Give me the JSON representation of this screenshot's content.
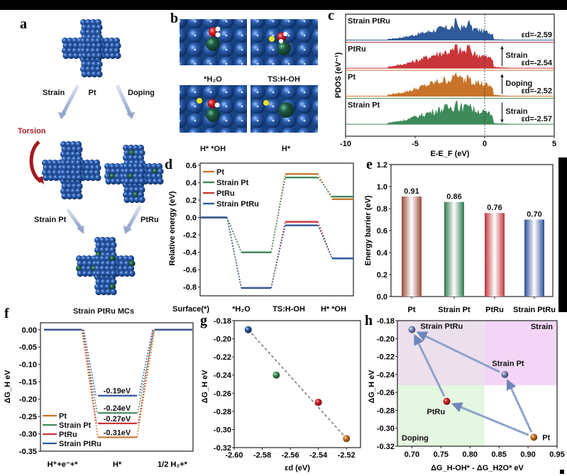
{
  "colors": {
    "pt": "#c8742a",
    "strain_pt": "#3e8a5a",
    "ptru": "#c9363a",
    "strain_ptru": "#2e5a9a",
    "atom_blue": "#1f4f96",
    "atom_green": "#1f5a44",
    "arrow": "#9aaccc",
    "torsion": "#b01e24",
    "strain_region": "#f2d9f5",
    "doping_region": "#e6f8e3"
  },
  "panel_a": {
    "label": "a",
    "top_name": "Pt",
    "left_arrow_label": "Strain",
    "right_arrow_label": "Doping",
    "torsion_label": "Torsion",
    "left_name": "Strain Pt",
    "right_name": "PtRu",
    "bottom_name": "Strain PtRu MCs"
  },
  "panel_b": {
    "label": "b",
    "images": [
      {
        "caption": "*H₂O"
      },
      {
        "caption": "TS:H-OH"
      },
      {
        "caption": "H* *OH"
      },
      {
        "caption": "H*"
      }
    ]
  },
  "chart_data": [
    {
      "id": "c",
      "label": "c",
      "type": "area",
      "xlabel": "E-E_F (eV)",
      "ylabel": "PDOS (eV⁻¹)",
      "xlim": [
        -10,
        5
      ],
      "xticks": [
        "-10",
        "-5",
        "0",
        "5"
      ],
      "fermi_line_x": 0,
      "series": [
        {
          "name": "Strain PtRu",
          "ed_label": "εd=-2.59",
          "ed": -2.59,
          "color_key": "strain_ptru",
          "annotation": ""
        },
        {
          "name": "PtRu",
          "ed_label": "εd=-2.54",
          "ed": -2.54,
          "color_key": "ptru",
          "annotation": "Strain",
          "arrow": "up"
        },
        {
          "name": "Pt",
          "ed_label": "εd=-2.52",
          "ed": -2.52,
          "color_key": "pt",
          "annotation": "Doping",
          "arrow": "up"
        },
        {
          "name": "Strain Pt",
          "ed_label": "εd=-2.57",
          "ed": -2.57,
          "color_key": "strain_pt",
          "annotation": "Strain",
          "arrow": "down"
        }
      ]
    },
    {
      "id": "d",
      "label": "d",
      "type": "line",
      "ylabel": "Relative energy (eV)",
      "ylim": [
        -0.9,
        0.6
      ],
      "yticks": [
        "0.6",
        "0.4",
        "0.2",
        "0.0",
        "-0.2",
        "-0.4",
        "-0.6",
        "-0.8"
      ],
      "categories": [
        "Surface(*)",
        "*H₂O",
        "TS:H-OH",
        "H* *OH"
      ],
      "legend": "top-left",
      "series": [
        {
          "name": "Pt",
          "color_key": "pt",
          "values": [
            0.0,
            -0.4,
            0.5,
            0.21
          ]
        },
        {
          "name": "Strain Pt",
          "color_key": "strain_pt",
          "values": [
            0.0,
            -0.4,
            0.46,
            0.24
          ]
        },
        {
          "name": "PtRu",
          "color_key": "ptru",
          "values": [
            0.0,
            -0.81,
            -0.05,
            -0.47
          ]
        },
        {
          "name": "Strain PtRu",
          "color_key": "strain_ptru",
          "values": [
            0.0,
            -0.81,
            -0.09,
            -0.47
          ]
        }
      ]
    },
    {
      "id": "e",
      "label": "e",
      "type": "bar",
      "ylabel": "Energy barrier (eV)",
      "ylim": [
        0,
        1.2
      ],
      "yticks": [
        "0.0",
        "0.2",
        "0.4",
        "0.6",
        "0.8",
        "1.0",
        "1.2"
      ],
      "categories": [
        "Pt",
        "Strain Pt",
        "PtRu",
        "Strain PtRu"
      ],
      "values": [
        0.91,
        0.86,
        0.76,
        0.7
      ],
      "value_labels": [
        "0.91",
        "0.86",
        "0.76",
        "0.70"
      ],
      "color_keys": [
        "pt_bar",
        "strain_pt",
        "ptru",
        "strain_ptru"
      ]
    },
    {
      "id": "f",
      "label": "f",
      "type": "line",
      "ylabel": "ΔG_H eV",
      "ylim": [
        -0.35,
        0.02
      ],
      "yticks": [
        "0.00",
        "-0.05",
        "-0.10",
        "-0.15",
        "-0.20",
        "-0.25",
        "-0.30",
        "-0.35"
      ],
      "categories": [
        "H⁺+e⁻+*",
        "H*",
        "1/2 H₂+*"
      ],
      "legend": "bottom-left",
      "value_labels": [
        "-0.19eV",
        "-0.24eV",
        "-0.27eV",
        "-0.31eV"
      ],
      "series": [
        {
          "name": "Pt",
          "color_key": "pt",
          "values": [
            0.0,
            -0.31,
            0.0
          ]
        },
        {
          "name": "Strain Pt",
          "color_key": "strain_pt",
          "values": [
            0.0,
            -0.24,
            0.0
          ]
        },
        {
          "name": "PtRu",
          "color_key": "ptru",
          "values": [
            0.0,
            -0.27,
            0.0
          ]
        },
        {
          "name": "Strain PtRu",
          "color_key": "strain_ptru",
          "values": [
            0.0,
            -0.19,
            0.0
          ]
        }
      ]
    },
    {
      "id": "g",
      "label": "g",
      "type": "scatter",
      "xlabel": "εd (eV)",
      "ylabel": "ΔG_H eV",
      "xlim": [
        -2.6,
        -2.51
      ],
      "ylim": [
        -0.32,
        -0.18
      ],
      "xticks": [
        "-2.60",
        "-2.58",
        "-2.56",
        "-2.54",
        "-2.52"
      ],
      "yticks": [
        "-0.18",
        "-0.20",
        "-0.22",
        "-0.24",
        "-0.26",
        "-0.28",
        "-0.30",
        "-0.32"
      ],
      "points": [
        {
          "name": "Strain PtRu",
          "x": -2.59,
          "y": -0.19,
          "color_key": "strain_ptru"
        },
        {
          "name": "Strain Pt",
          "x": -2.57,
          "y": -0.24,
          "color_key": "strain_pt"
        },
        {
          "name": "PtRu",
          "x": -2.54,
          "y": -0.27,
          "color_key": "ptru"
        },
        {
          "name": "Pt",
          "x": -2.52,
          "y": -0.31,
          "color_key": "pt"
        }
      ],
      "fit_line": [
        [
          -2.59,
          -0.19
        ],
        [
          -2.52,
          -0.31
        ]
      ]
    },
    {
      "id": "h",
      "label": "h",
      "type": "scatter",
      "xlabel": "ΔG_H-OH* - ΔG_H2O* eV",
      "ylabel": "ΔG_H eV",
      "xlim": [
        0.675,
        0.95
      ],
      "ylim": [
        -0.32,
        -0.18
      ],
      "xticks": [
        "0.70",
        "0.75",
        "0.80",
        "0.85",
        "0.90",
        "0.95"
      ],
      "yticks": [
        "-0.18",
        "-0.20",
        "-0.22",
        "-0.24",
        "-0.26",
        "-0.28",
        "-0.30",
        "-0.32"
      ],
      "regions": [
        {
          "name": "Strain",
          "x": [
            0.825,
            0.95
          ],
          "y": [
            -0.252,
            -0.18
          ],
          "color_key": "strain_region"
        },
        {
          "name": "Doping",
          "x": [
            0.675,
            0.825
          ],
          "y": [
            -0.32,
            -0.252
          ],
          "color_key": "doping_region"
        },
        {
          "name": "",
          "x": [
            0.675,
            0.825
          ],
          "y": [
            -0.252,
            -0.18
          ],
          "color_key": "mixed_region"
        }
      ],
      "points": [
        {
          "name": "Strain PtRu",
          "x": 0.7,
          "y": -0.19,
          "color_key": "strain_ptru"
        },
        {
          "name": "Strain Pt",
          "x": 0.86,
          "y": -0.24,
          "color_key": "strain_ptru"
        },
        {
          "name": "PtRu",
          "x": 0.76,
          "y": -0.27,
          "color_key": "ptru"
        },
        {
          "name": "Pt",
          "x": 0.91,
          "y": -0.31,
          "color_key": "pt"
        }
      ],
      "arrows": [
        {
          "from": "Pt",
          "to": "PtRu"
        },
        {
          "from": "Pt",
          "to": "Strain Pt"
        },
        {
          "from": "PtRu",
          "to": "Strain PtRu"
        },
        {
          "from": "Strain Pt",
          "to": "Strain PtRu"
        }
      ]
    }
  ]
}
